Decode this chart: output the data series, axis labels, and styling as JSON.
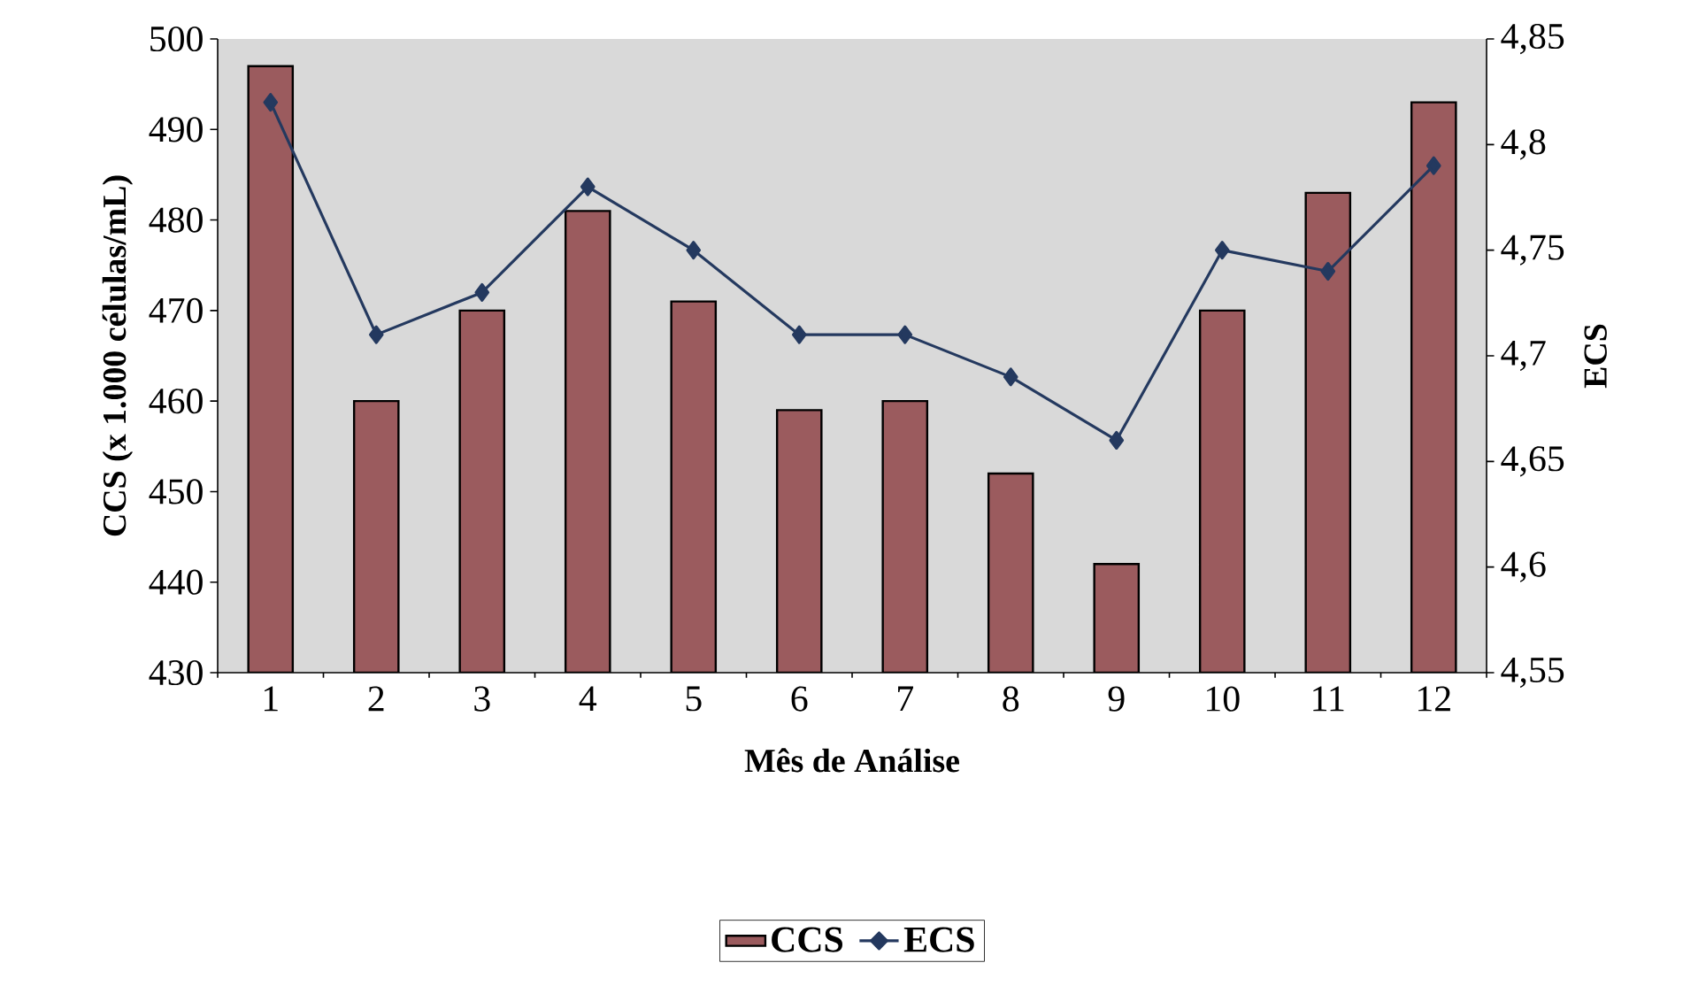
{
  "chart_data": {
    "type": "bar",
    "xlabel": "Mês de Análise",
    "ylabel": "CCS (x 1.000 células/mL)",
    "y2label": "ECS",
    "categories": [
      "1",
      "2",
      "3",
      "4",
      "5",
      "6",
      "7",
      "8",
      "9",
      "10",
      "11",
      "12"
    ],
    "series": [
      {
        "name": "CCS",
        "color": "#9b5b5e",
        "values": [
          497,
          460,
          470,
          481,
          471,
          459,
          460,
          452,
          442,
          470,
          483,
          493
        ]
      },
      {
        "name": "ECS",
        "type": "line",
        "axis": "y2",
        "color": "#24395f",
        "marker": "diamond",
        "line_style": "solid",
        "values": [
          4.82,
          4.71,
          4.73,
          4.78,
          4.75,
          4.71,
          4.71,
          4.69,
          4.66,
          4.75,
          4.74,
          4.79
        ]
      }
    ],
    "ylim": [
      430,
      500
    ],
    "yticks": [
      430,
      440,
      450,
      460,
      470,
      480,
      490,
      500
    ],
    "y2lim": [
      4.55,
      4.85
    ],
    "y2ticks": [
      {
        "value": 4.55,
        "label": "4,55"
      },
      {
        "value": 4.6,
        "label": "4,6"
      },
      {
        "value": 4.65,
        "label": "4,65"
      },
      {
        "value": 4.7,
        "label": "4,7"
      },
      {
        "value": 4.75,
        "label": "4,75"
      },
      {
        "value": 4.8,
        "label": "4,8"
      },
      {
        "value": 4.85,
        "label": "4,85"
      }
    ],
    "grid": false,
    "legend": "bottom"
  }
}
